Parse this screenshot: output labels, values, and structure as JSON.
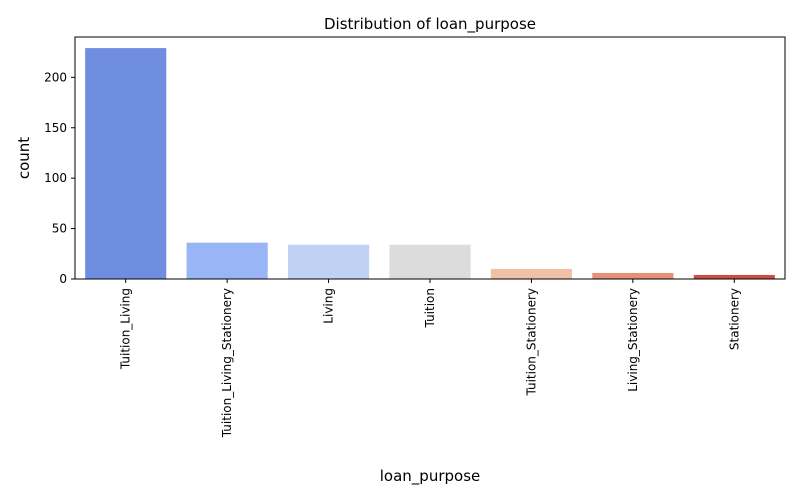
{
  "chart_data": {
    "type": "bar",
    "title": "Distribution of loan_purpose",
    "xlabel": "loan_purpose",
    "ylabel": "count",
    "categories": [
      "Tuition_Living",
      "Tuition_Living_Stationery",
      "Living",
      "Tuition",
      "Tuition_Stationery",
      "Living_Stationery",
      "Stationery"
    ],
    "values": [
      229,
      36,
      34,
      34,
      10,
      6,
      4
    ],
    "ylim": [
      0,
      240
    ],
    "yticks": [
      "0",
      "50",
      "100",
      "150",
      "200"
    ],
    "grid": false,
    "legend": "none",
    "colors": [
      "#6f8ee0",
      "#9ab5f5",
      "#c0d2f4",
      "#dcdcdc",
      "#f0c1a7",
      "#e5917a",
      "#cd4e45"
    ]
  }
}
